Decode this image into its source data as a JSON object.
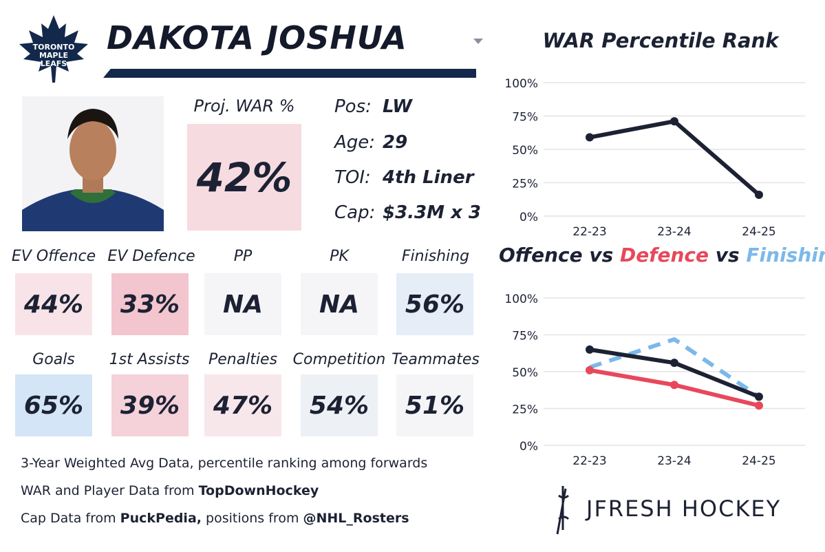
{
  "player": {
    "name": "DAKOTA JOSHUA",
    "team_logo_text": [
      "TORONTO",
      "MAPLE",
      "LEAFS"
    ],
    "proj_war_label": "Proj. WAR %",
    "proj_war_value": "42%"
  },
  "info": [
    {
      "key": "Pos:",
      "value": "LW"
    },
    {
      "key": "Age:",
      "value": "29"
    },
    {
      "key": "TOI:",
      "value": "4th Liner"
    },
    {
      "key": "Cap:",
      "value": "$3.3M x 3"
    }
  ],
  "stats_row1": [
    {
      "label": "EV Offence",
      "value": "44%",
      "color": "#f8e4e8"
    },
    {
      "label": "EV Defence",
      "value": "33%",
      "color": "#f3c5cf"
    },
    {
      "label": "PP",
      "value": "NA",
      "color": "#f5f5f7"
    },
    {
      "label": "PK",
      "value": "NA",
      "color": "#f5f5f7"
    },
    {
      "label": "Finishing",
      "value": "56%",
      "color": "#e5edf7"
    }
  ],
  "stats_row2": [
    {
      "label": "Goals",
      "value": "65%",
      "color": "#d3e5f6"
    },
    {
      "label": "1st Assists",
      "value": "39%",
      "color": "#f5d1d9"
    },
    {
      "label": "Penalties",
      "value": "47%",
      "color": "#f8e7ea"
    },
    {
      "label": "Competition",
      "value": "54%",
      "color": "#edf1f5"
    },
    {
      "label": "Teammates",
      "value": "51%",
      "color": "#f5f5f7"
    }
  ],
  "footer": {
    "line1": "3-Year Weighted Avg Data, percentile ranking among forwards",
    "line2_prefix": "WAR and Player Data from ",
    "line2_bold": "TopDownHockey",
    "line3_prefix": "Cap Data from ",
    "line3_bold": "PuckPedia,",
    "line3_mid": " positions from ",
    "line3_bold2": "@NHL_Rosters"
  },
  "brand": {
    "name": "JFRESH HOCKEY"
  },
  "chart_data": [
    {
      "type": "line",
      "title": "WAR Percentile Rank",
      "categories": [
        "22-23",
        "23-24",
        "24-25"
      ],
      "y_ticks": [
        "0%",
        "25%",
        "50%",
        "75%",
        "100%"
      ],
      "ylim": [
        0,
        100
      ],
      "grid": true,
      "series": [
        {
          "values": [
            59,
            71,
            16
          ],
          "color": "#1c2233",
          "dashed": false
        }
      ]
    },
    {
      "type": "line",
      "title_parts": [
        {
          "text": "Offence",
          "color": "#1c2233"
        },
        {
          "text": " vs ",
          "color": "#1c2233"
        },
        {
          "text": "Defence",
          "color": "#e8485c"
        },
        {
          "text": " vs ",
          "color": "#1c2233"
        },
        {
          "text": "Finishing",
          "color": "#7cb8ea"
        }
      ],
      "categories": [
        "22-23",
        "23-24",
        "24-25"
      ],
      "y_ticks": [
        "0%",
        "25%",
        "50%",
        "75%",
        "100%"
      ],
      "ylim": [
        0,
        100
      ],
      "grid": true,
      "series": [
        {
          "name": "Finishing",
          "values": [
            53,
            72,
            33
          ],
          "color": "#7cb8ea",
          "dashed": true
        },
        {
          "name": "Defence",
          "values": [
            51,
            41,
            27
          ],
          "color": "#e8485c",
          "dashed": false
        },
        {
          "name": "Offence",
          "values": [
            65,
            56,
            33
          ],
          "color": "#1c2233",
          "dashed": false
        }
      ]
    }
  ]
}
